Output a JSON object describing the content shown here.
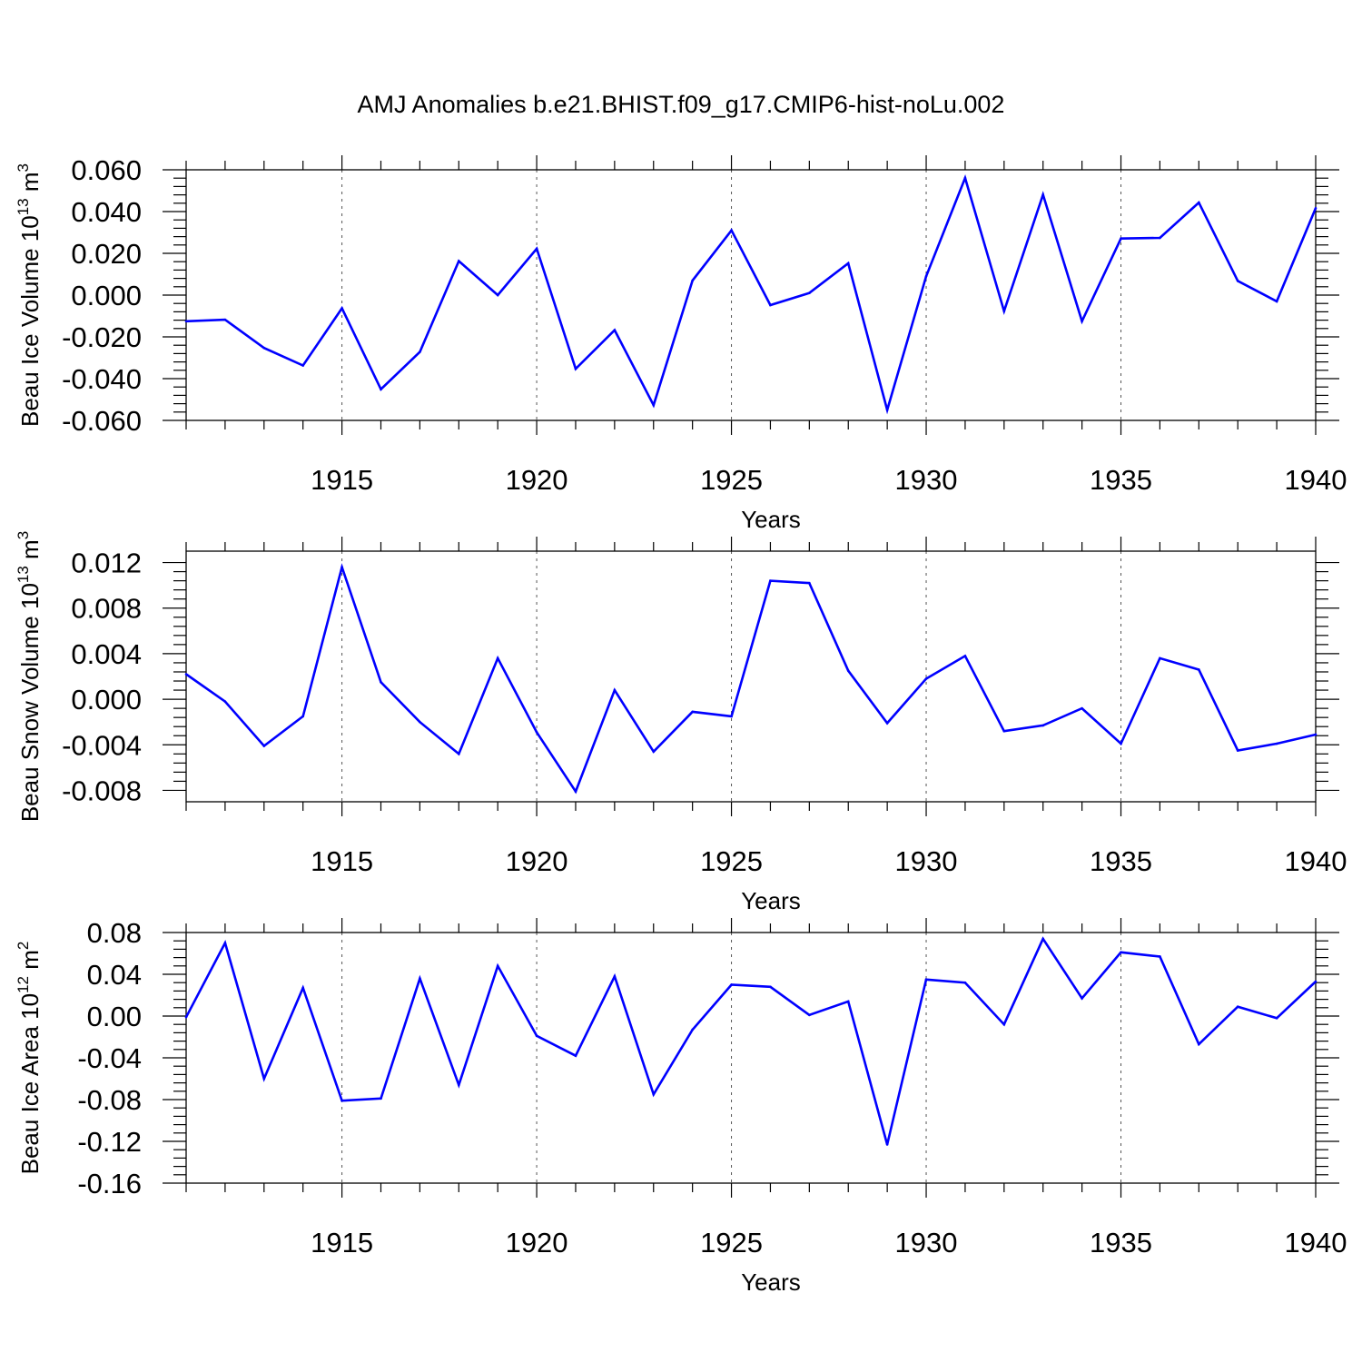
{
  "title": "AMJ Anomalies b.e21.BHIST.f09_g17.CMIP6-hist-noLu.002",
  "colors": {
    "line": "#0000ff",
    "axis": "#000000",
    "grid": "#555555"
  },
  "chart_data": [
    {
      "type": "line",
      "ylabel": "Beau Ice Volume 10",
      "ylabel_exp": "13",
      "ylabel_unit": " m",
      "ylabel_unit_exp": "3",
      "xlabel": "Years",
      "xlim": [
        1911,
        1940
      ],
      "ylim": [
        -0.06,
        0.06
      ],
      "xticks": [
        1915,
        1920,
        1925,
        1930,
        1935,
        1940
      ],
      "yticks": [
        -0.06,
        -0.04,
        -0.02,
        0.0,
        0.02,
        0.04,
        0.06
      ],
      "ytick_labels": [
        "-0.060",
        "-0.040",
        "-0.020",
        "0.000",
        "0.020",
        "0.040",
        "0.060"
      ],
      "x": [
        1911,
        1912,
        1913,
        1914,
        1915,
        1916,
        1917,
        1918,
        1919,
        1920,
        1921,
        1922,
        1923,
        1924,
        1925,
        1926,
        1927,
        1928,
        1929,
        1930,
        1931,
        1932,
        1933,
        1934,
        1935,
        1936,
        1937,
        1938,
        1939,
        1940
      ],
      "y": [
        -0.0125,
        -0.0118,
        -0.0253,
        -0.0337,
        -0.0063,
        -0.0451,
        -0.0272,
        0.0163,
        0.0,
        0.0222,
        -0.0353,
        -0.0168,
        -0.0527,
        0.007,
        0.031,
        -0.0048,
        0.001,
        0.0152,
        -0.055,
        0.009,
        0.0561,
        -0.0077,
        0.0481,
        -0.0125,
        0.0271,
        0.0274,
        0.0443,
        0.0068,
        -0.003,
        0.0416
      ]
    },
    {
      "type": "line",
      "ylabel": "Beau Snow Volume 10",
      "ylabel_exp": "13",
      "ylabel_unit": " m",
      "ylabel_unit_exp": "3",
      "xlabel": "Years",
      "xlim": [
        1911,
        1940
      ],
      "ylim": [
        -0.009,
        0.013
      ],
      "xticks": [
        1915,
        1920,
        1925,
        1930,
        1935,
        1940
      ],
      "yticks": [
        -0.008,
        -0.004,
        0.0,
        0.004,
        0.008,
        0.012
      ],
      "ytick_labels": [
        "-0.008",
        "-0.004",
        "0.000",
        "0.004",
        "0.008",
        "0.012"
      ],
      "x": [
        1911,
        1912,
        1913,
        1914,
        1915,
        1916,
        1917,
        1918,
        1919,
        1920,
        1921,
        1922,
        1923,
        1924,
        1925,
        1926,
        1927,
        1928,
        1929,
        1930,
        1931,
        1932,
        1933,
        1934,
        1935,
        1936,
        1937,
        1938,
        1939,
        1940
      ],
      "y": [
        0.0022,
        -0.0002,
        -0.0041,
        -0.0015,
        0.0116,
        0.0015,
        -0.002,
        -0.0048,
        0.0036,
        -0.0029,
        -0.0081,
        0.0008,
        -0.0046,
        -0.0011,
        -0.0015,
        0.0104,
        0.0102,
        0.0025,
        -0.0021,
        0.0018,
        0.0038,
        -0.0028,
        -0.0023,
        -0.0008,
        -0.0039,
        0.0036,
        0.0026,
        -0.0045,
        -0.0039,
        -0.0031
      ]
    },
    {
      "type": "line",
      "ylabel": "Beau Ice Area 10",
      "ylabel_exp": "12",
      "ylabel_unit": " m",
      "ylabel_unit_exp": "2",
      "xlabel": "Years",
      "xlim": [
        1911,
        1940
      ],
      "ylim": [
        -0.16,
        0.08
      ],
      "xticks": [
        1915,
        1920,
        1925,
        1930,
        1935,
        1940
      ],
      "yticks": [
        -0.16,
        -0.12,
        -0.08,
        -0.04,
        0.0,
        0.04,
        0.08
      ],
      "ytick_labels": [
        "-0.16",
        "-0.12",
        "-0.08",
        "-0.04",
        "0.00",
        "0.04",
        "0.08"
      ],
      "x": [
        1911,
        1912,
        1913,
        1914,
        1915,
        1916,
        1917,
        1918,
        1919,
        1920,
        1921,
        1922,
        1923,
        1924,
        1925,
        1926,
        1927,
        1928,
        1929,
        1930,
        1931,
        1932,
        1933,
        1934,
        1935,
        1936,
        1937,
        1938,
        1939,
        1940
      ],
      "y": [
        -0.001,
        0.07,
        -0.06,
        0.027,
        -0.081,
        -0.079,
        0.036,
        -0.066,
        0.048,
        -0.019,
        -0.038,
        0.038,
        -0.075,
        -0.013,
        0.03,
        0.028,
        0.001,
        0.014,
        -0.123,
        0.035,
        0.032,
        -0.008,
        0.074,
        0.017,
        0.061,
        0.057,
        -0.027,
        0.009,
        -0.002,
        0.033
      ]
    }
  ]
}
